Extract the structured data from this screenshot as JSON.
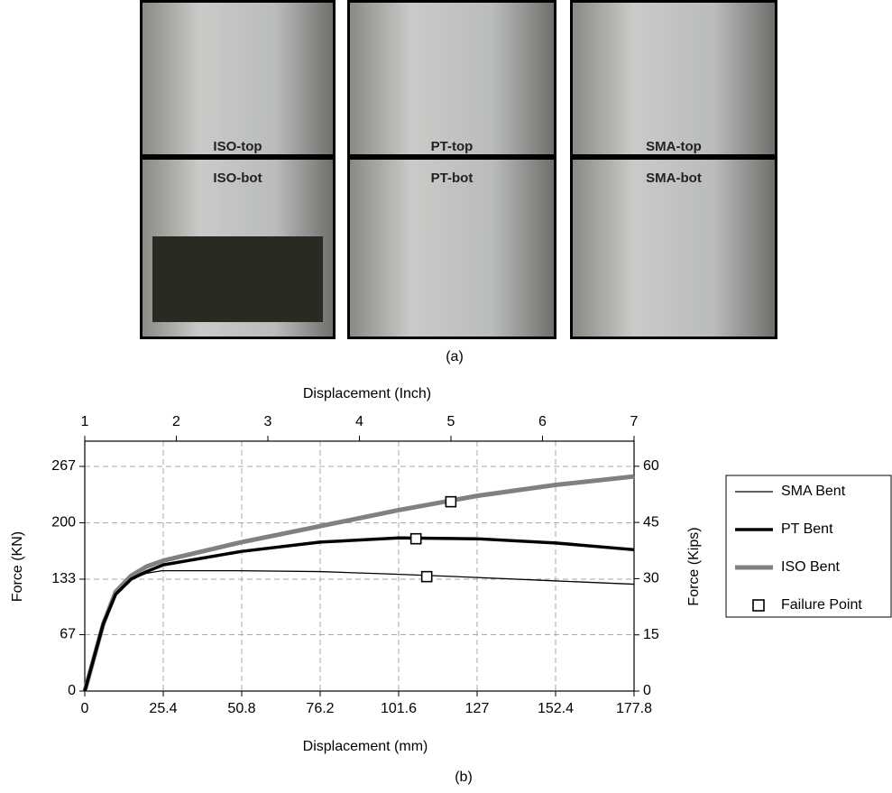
{
  "panel_a": {
    "photos": [
      {
        "top": "ISO-top",
        "bottom": "ISO-bot"
      },
      {
        "top": "PT-top",
        "bottom": "PT-bot"
      },
      {
        "top": "SMA-top",
        "bottom": "SMA-bot"
      }
    ],
    "caption": "(a)"
  },
  "chart_data": {
    "type": "line",
    "caption": "(b)",
    "x_label": "Displacement (mm)",
    "x2_label": "Displacement (Inch)",
    "y_label": "Force (KN)",
    "y2_label": "Force (Kips)",
    "xlim": [
      0,
      177.8
    ],
    "xticks": [
      0,
      25.4,
      50.8,
      76.2,
      101.6,
      127,
      152.4,
      177.8
    ],
    "x2lim": [
      1,
      7
    ],
    "x2ticks": [
      1,
      2,
      3,
      4,
      5,
      6,
      7
    ],
    "ylim": [
      0,
      297
    ],
    "yticks": [
      0,
      67,
      133,
      200,
      267
    ],
    "y2lim": [
      0,
      66.7
    ],
    "y2ticks": [
      0,
      15,
      30,
      45,
      60
    ],
    "grid": true,
    "legend": "outside-right",
    "series": [
      {
        "name": "SMA Bent",
        "color": "#000000",
        "line_width": 1.3,
        "x": [
          0,
          3,
          6,
          10,
          15,
          20,
          25,
          50,
          76,
          100,
          127,
          152,
          177.8
        ],
        "values": [
          0,
          40,
          80,
          115,
          133,
          140,
          143,
          143,
          142,
          139,
          135,
          131,
          127
        ]
      },
      {
        "name": "PT Bent",
        "color": "#000000",
        "line_width": 3.5,
        "x": [
          0,
          3,
          6,
          10,
          15,
          20,
          25.4,
          50.8,
          76.2,
          101.6,
          127,
          152.4,
          177.8
        ],
        "values": [
          0,
          40,
          80,
          115,
          133,
          142,
          150,
          166,
          177,
          182,
          181,
          176,
          168
        ]
      },
      {
        "name": "ISO Bent",
        "color": "#808080",
        "line_width": 5,
        "x": [
          0,
          3,
          6,
          10,
          15,
          20,
          25.4,
          50.8,
          76.2,
          101.6,
          127,
          152.4,
          177.8
        ],
        "values": [
          0,
          40,
          80,
          118,
          137,
          148,
          155,
          177,
          196,
          215,
          232,
          245,
          255
        ]
      },
      {
        "name": "Failure Point",
        "color": "#000000",
        "marker": "square",
        "x": [
          118.5,
          107.2,
          110.7
        ],
        "values": [
          225,
          181,
          136
        ]
      }
    ]
  }
}
